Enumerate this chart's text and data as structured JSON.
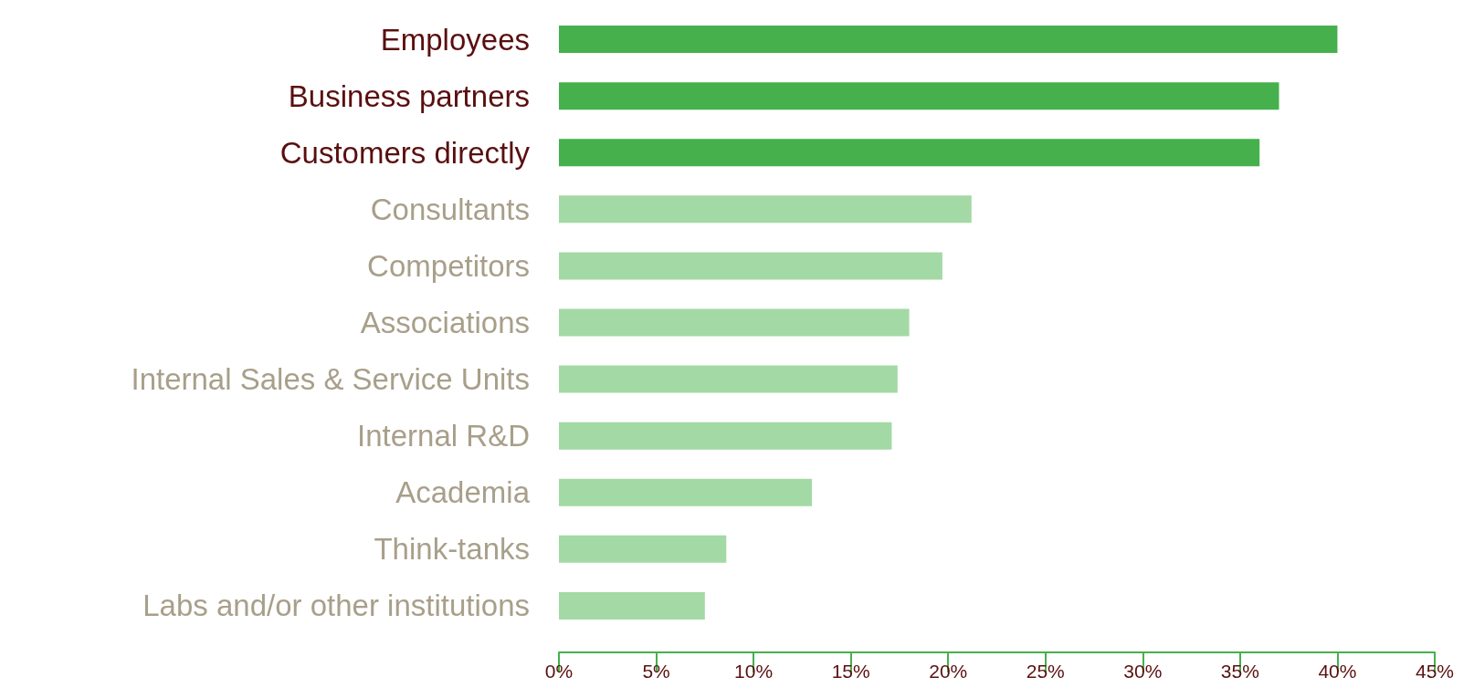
{
  "chart_data": {
    "type": "bar",
    "orientation": "horizontal",
    "categories": [
      "Employees",
      "Business partners",
      "Customers directly",
      "Consultants",
      "Competitors",
      "Associations",
      "Internal Sales & Service Units",
      "Internal R&D",
      "Academia",
      "Think-tanks",
      "Labs and/or other institutions"
    ],
    "values": [
      40,
      37,
      36,
      21.2,
      19.7,
      18,
      17.4,
      17.1,
      13,
      8.6,
      7.5
    ],
    "colors": [
      "#46b04c",
      "#46b04c",
      "#46b04c",
      "#a3d9a5",
      "#a3d9a5",
      "#a3d9a5",
      "#a3d9a5",
      "#a3d9a5",
      "#a3d9a5",
      "#a3d9a5",
      "#a3d9a5"
    ],
    "xlim": [
      0,
      45
    ],
    "xticks": [
      {
        "value": 0,
        "label": "0%"
      },
      {
        "value": 5,
        "label": "5%"
      },
      {
        "value": 10,
        "label": "10%"
      },
      {
        "value": 15,
        "label": "15%"
      },
      {
        "value": 20,
        "label": "20%"
      },
      {
        "value": 25,
        "label": "25%"
      },
      {
        "value": 30,
        "label": "30%"
      },
      {
        "value": 35,
        "label": "35%"
      },
      {
        "value": 40,
        "label": "40%"
      },
      {
        "value": 45,
        "label": "45%"
      }
    ],
    "grid": false
  }
}
